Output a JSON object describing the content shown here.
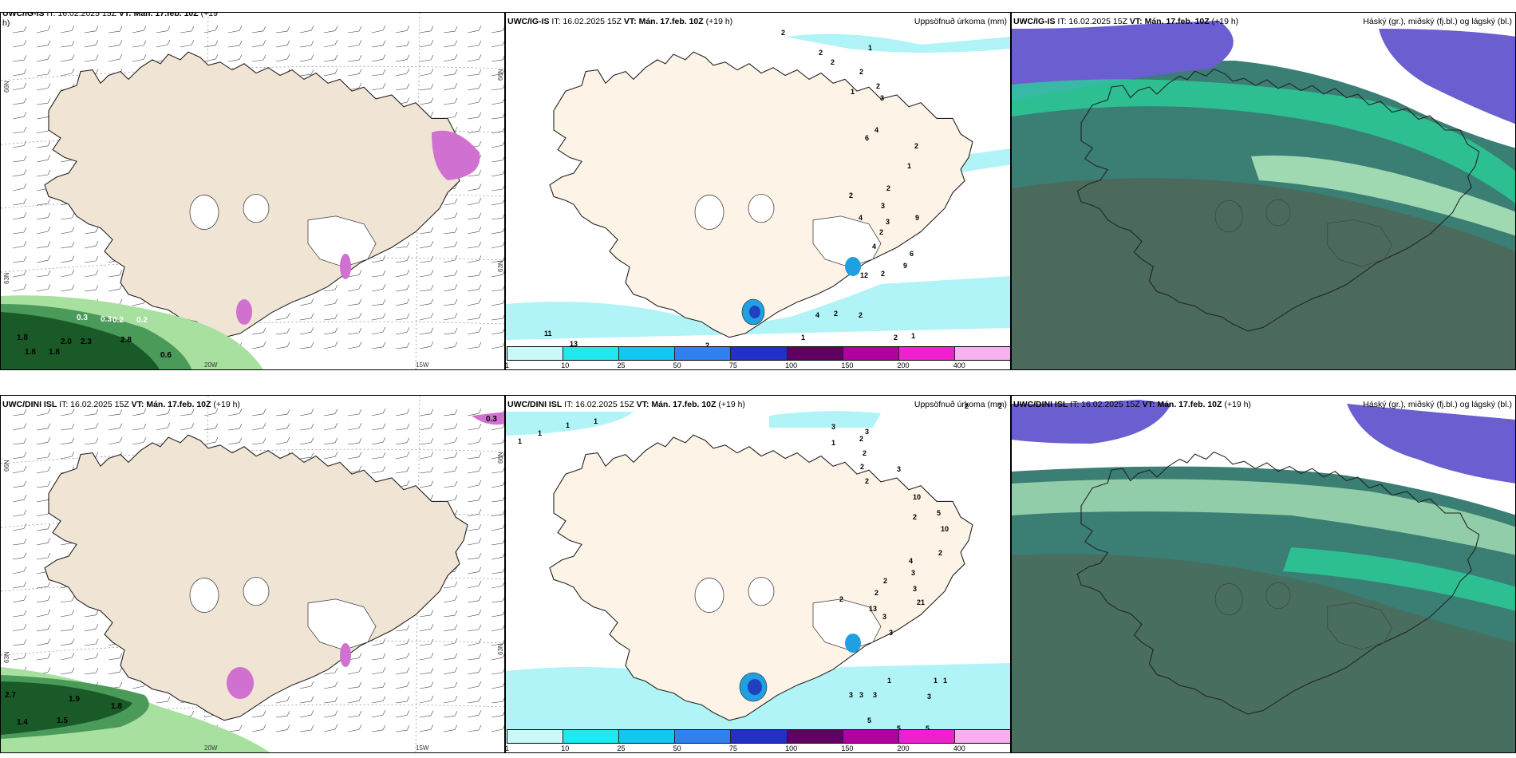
{
  "colors": {
    "land": "#f0e4d4",
    "land_precip": "#fdf3e6",
    "precip_light": "#b0f4f7",
    "glacier": "#ffffff",
    "pink": "#d070d0",
    "green_dark": "#1a5a28",
    "green_mid": "#4a9a5a",
    "green_light": "#a8e0a0",
    "cloud_bg": "#3a7e74",
    "cloud_purple": "#6a5ed0",
    "cloud_green": "#2ad09a",
    "cloud_light": "#b8f0c0"
  },
  "icons": [
    "map-iceland",
    "wind-barb",
    "colorbar"
  ],
  "panels": {
    "top_left": {
      "title_prefix": "UWC/IG-IS",
      "title_mid": " IT: 16.02.2025 15Z ",
      "title_vt": "VT: Mán. 17.feb. 10Z",
      "title_suffix": " (+19",
      "title_line2": "h)",
      "lon_labels": [
        "20W",
        "15W"
      ],
      "lat_labels": [
        "66N",
        "63N"
      ],
      "right_labels": [
        "66N",
        "63N"
      ],
      "values": [
        "0.3",
        "0.3",
        "0.2",
        "0.2",
        "1.8",
        "1.8",
        "2.0",
        "2.3",
        "0.6",
        "1.8",
        "2.8"
      ]
    },
    "top_mid": {
      "title_prefix": "UWC/IG-IS",
      "title_mid": " IT: 16.02.2025 15Z ",
      "title_vt": "VT: Mán. 17.feb. 10Z",
      "title_suffix": " (+19 h)",
      "right_title": "Uppsöfnuð úrkoma (mm)",
      "numbers": [
        "2",
        "2",
        "2",
        "1",
        "2",
        "2",
        "1",
        "3",
        "4",
        "6",
        "2",
        "1",
        "2",
        "2",
        "3",
        "4",
        "3",
        "9",
        "2",
        "4",
        "6",
        "9",
        "2",
        "12",
        "4",
        "2",
        "2",
        "11",
        "13",
        "2",
        "1",
        "1",
        "2",
        "1",
        "2"
      ]
    },
    "top_right": {
      "title_prefix": "UWC/IG-IS",
      "title_mid": " IT: 16.02.2025 15Z ",
      "title_vt": "VT: Mán. 17.feb. 10Z",
      "title_suffix": " (+19 h)",
      "right_title": "Háský (gr.), miðský (fj.bl.) og lágský (bl.)"
    },
    "bottom_left": {
      "title_prefix": "UWC/DINI ISL",
      "title_mid": " IT: 16.02.2025 15Z ",
      "title_vt": "VT: Mán. 17.feb. 10Z",
      "title_suffix": " (+19 h)",
      "lon_labels": [
        "20W",
        "15W"
      ],
      "lat_labels": [
        "66N",
        "63N"
      ],
      "right_labels": [
        "66N",
        "63N"
      ],
      "values": [
        "2.7",
        "1.9",
        "1.8",
        "1.4",
        "1.5",
        "0.3"
      ]
    },
    "bottom_mid": {
      "title_prefix": "UWC/DINI ISL",
      "title_mid": " IT: 16.02.2025 15Z ",
      "title_vt": "VT: Mán. 17.feb. 10Z",
      "title_suffix": " (+19 h)",
      "right_title": "Uppsöfnuð úrkoma (mm)",
      "numbers": [
        "1",
        "1",
        "1",
        "1",
        "3",
        "3",
        "2",
        "2",
        "2",
        "3",
        "2",
        "1",
        "10",
        "2",
        "5",
        "10",
        "2",
        "4",
        "3",
        "2",
        "2",
        "3",
        "21",
        "13",
        "3",
        "2",
        "3",
        "1",
        "1",
        "1",
        "3",
        "3",
        "3",
        "3",
        "5",
        "5",
        "5",
        "2",
        "2"
      ]
    },
    "bottom_right": {
      "title_prefix": "UWC/DINI ISL",
      "title_mid": " IT: 16.02.2025 15Z ",
      "title_vt": "VT: Mán. 17.feb. 10Z",
      "title_suffix": " (+19 h)",
      "right_title": "Háský (gr.), miðský (fj.bl.) og lágský (bl.)"
    }
  },
  "colorbar": {
    "ticks": [
      "1",
      "10",
      "25",
      "50",
      "75",
      "100",
      "150",
      "200",
      "400"
    ],
    "colors": [
      "#c8fafa",
      "#20e8f0",
      "#10c8f0",
      "#3080f0",
      "#2030c8",
      "#600060",
      "#b000a0",
      "#f020d0",
      "#f8b0f0"
    ]
  }
}
